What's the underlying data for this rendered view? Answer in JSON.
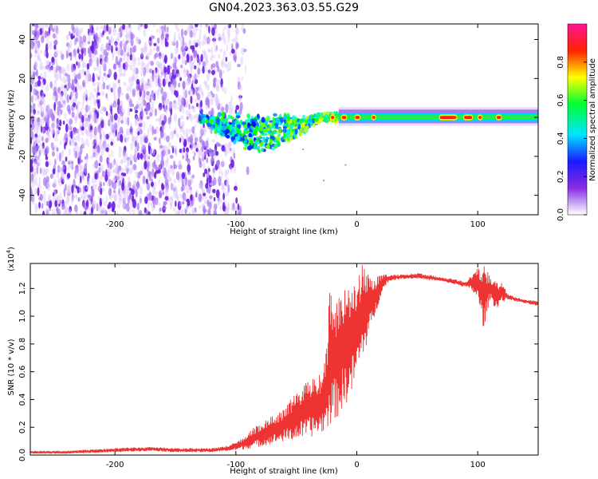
{
  "title": "GN04.2023.363.03.55.G29",
  "chart_data": [
    {
      "type": "heatmap",
      "title": "GN04.2023.363.03.55.G29",
      "xlabel": "Height of straight line (km)",
      "ylabel": "Frequency (Hz)",
      "xlim": [
        -270,
        150
      ],
      "ylim": [
        -50,
        48
      ],
      "xticks": [
        -200,
        -100,
        0,
        100
      ],
      "yticks": [
        -40,
        -20,
        0,
        20,
        40
      ],
      "description_series": [
        {
          "name": "noise",
          "x_range": [
            -270,
            -110
          ],
          "freq_range": [
            -50,
            48
          ]
        },
        {
          "name": "signal_onset",
          "x_range": [
            -130,
            -15
          ],
          "freq_center": -2,
          "spread_hz": [
            -16,
            8
          ]
        },
        {
          "name": "carrier_line",
          "x_range": [
            -15,
            150
          ],
          "freq_center": 0,
          "spread_hz": [
            -3,
            4
          ]
        }
      ],
      "colorbar": {
        "label": "Normalized spectral amplitude",
        "range": [
          0,
          1
        ],
        "ticks": [
          "0.0",
          "0.2",
          "0.4",
          "0.6",
          "0.8"
        ],
        "colormap": [
          "#ffffff",
          "#8a2be2",
          "#0000ff",
          "#00ffff",
          "#00ff00",
          "#ffff00",
          "#ff0000",
          "#ff1493"
        ]
      }
    },
    {
      "type": "line",
      "xlabel": "Height of straight line (km)",
      "ylabel": "SNR (10 * v/v)",
      "y_scale_label": "(x10",
      "y_scale_exponent": "4",
      "xlim": [
        -270,
        150
      ],
      "ylim": [
        0,
        1.38
      ],
      "xticks": [
        -200,
        -100,
        0,
        100
      ],
      "yticks": [
        "0.0",
        "0.2",
        "0.4",
        "0.6",
        "0.8",
        "1.0",
        "1.2"
      ],
      "color": "#ee3333",
      "series": [
        {
          "name": "SNR",
          "x": [
            -270,
            -240,
            -200,
            -170,
            -150,
            -120,
            -105,
            -95,
            -85,
            -75,
            -65,
            -55,
            -45,
            -38,
            -30,
            -25,
            -22,
            -18,
            -15,
            -10,
            -5,
            0,
            5,
            10,
            15,
            20,
            25,
            30,
            40,
            50,
            60,
            70,
            80,
            90,
            95,
            100,
            105,
            110,
            115,
            120,
            125,
            130,
            140,
            150
          ],
          "y_low": [
            0.01,
            0.01,
            0.02,
            0.03,
            0.02,
            0.02,
            0.03,
            0.04,
            0.05,
            0.07,
            0.09,
            0.1,
            0.12,
            0.13,
            0.15,
            0.18,
            0.22,
            0.25,
            0.28,
            0.35,
            0.42,
            0.55,
            0.7,
            0.85,
            1.0,
            1.15,
            1.24,
            1.26,
            1.27,
            1.27,
            1.26,
            1.25,
            1.23,
            1.21,
            1.18,
            1.12,
            0.9,
            1.12,
            1.05,
            1.1,
            1.12,
            1.11,
            1.09,
            1.07
          ],
          "y_high": [
            0.03,
            0.03,
            0.05,
            0.06,
            0.05,
            0.05,
            0.07,
            0.12,
            0.2,
            0.26,
            0.3,
            0.4,
            0.5,
            0.55,
            0.6,
            0.75,
            1.3,
            1.1,
            1.2,
            1.2,
            1.2,
            1.3,
            1.38,
            1.3,
            1.28,
            1.31,
            1.3,
            1.3,
            1.3,
            1.31,
            1.3,
            1.28,
            1.27,
            1.25,
            1.3,
            1.35,
            1.38,
            1.3,
            1.25,
            1.24,
            1.16,
            1.14,
            1.12,
            1.11
          ]
        }
      ]
    }
  ]
}
